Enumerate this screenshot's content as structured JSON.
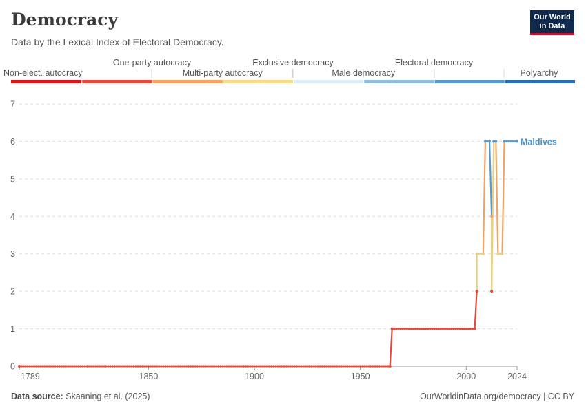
{
  "header": {
    "title": "Democracy",
    "subtitle": "Data by the Lexical Index of Electoral Democracy.",
    "logo_line1": "Our World",
    "logo_line2": "in Data"
  },
  "footer": {
    "source_label": "Data source:",
    "source_text": "Skaaning et al. (2025)",
    "credit": "OurWorldinData.org/democracy | CC BY"
  },
  "chart_data": {
    "type": "line",
    "title": "Democracy",
    "subtitle": "Data by the Lexical Index of Electoral Democracy.",
    "x_tick_labels": [
      "1789",
      "1850",
      "1900",
      "1950",
      "2000",
      "2024"
    ],
    "x_ticks": [
      1789,
      1850,
      1900,
      1950,
      2000,
      2024
    ],
    "xlim": [
      1789,
      2024
    ],
    "ylim": [
      0,
      7
    ],
    "y_ticks": [
      0,
      1,
      2,
      3,
      4,
      5,
      6,
      7
    ],
    "grid": "horizontal dashed",
    "legend": {
      "placement": "top",
      "categories": [
        {
          "label": "Non-elect. autocracy",
          "color": "#d7191c"
        },
        {
          "label": "One-party autocracy",
          "color": "#e4493b"
        },
        {
          "label": "Multi-party autocracy",
          "color": "#f4a261"
        },
        {
          "label": "Exclusive democracy",
          "color": "#f7dd8a"
        },
        {
          "label": "Male democracy",
          "color": "#dcecf7"
        },
        {
          "label": "Electoral democracy",
          "color": "#8fbcd8"
        },
        {
          "label": "Polyarchy",
          "color": "#5a9bcd"
        },
        {
          "label": "",
          "color": "#2c6fb0"
        }
      ]
    },
    "series": [
      {
        "name": "Maldives",
        "color": "#4a90c8",
        "points": [
          [
            1789,
            0
          ],
          [
            1964,
            0
          ],
          [
            1965,
            1
          ],
          [
            2004,
            1
          ],
          [
            2005,
            2
          ],
          [
            2005,
            3
          ],
          [
            2008,
            3
          ],
          [
            2009,
            6
          ],
          [
            2011,
            6
          ],
          [
            2012,
            4
          ],
          [
            2012,
            2
          ],
          [
            2013,
            6
          ],
          [
            2014,
            6
          ],
          [
            2015,
            3
          ],
          [
            2017,
            3
          ],
          [
            2018,
            6
          ],
          [
            2024,
            6
          ]
        ]
      }
    ]
  }
}
